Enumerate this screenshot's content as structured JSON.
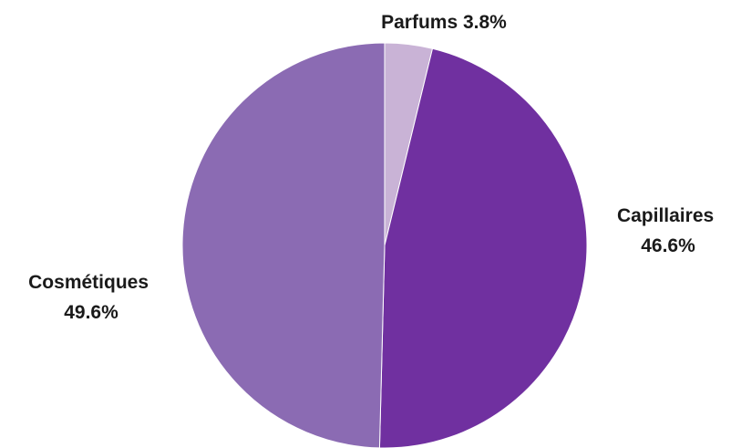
{
  "chart_data": {
    "type": "pie",
    "title": "",
    "start_angle_deg": 0,
    "direction": "clockwise",
    "label_placement": "outside",
    "slices": [
      {
        "label": "Parfums",
        "value": 3.8,
        "value_label": "3.8%",
        "color": "#c9b3d6",
        "label_lines": [
          "Parfums 3.8%"
        ]
      },
      {
        "label": "Capillaires",
        "value": 46.6,
        "value_label": "46.6%",
        "color": "#7030a0",
        "label_lines": [
          "Capillaires",
          "46.6%"
        ]
      },
      {
        "label": "Cosmétiques",
        "value": 49.6,
        "value_label": "49.6%",
        "color": "#8b6bb3",
        "label_lines": [
          "Cosmétiques",
          "49.6%"
        ]
      }
    ]
  }
}
